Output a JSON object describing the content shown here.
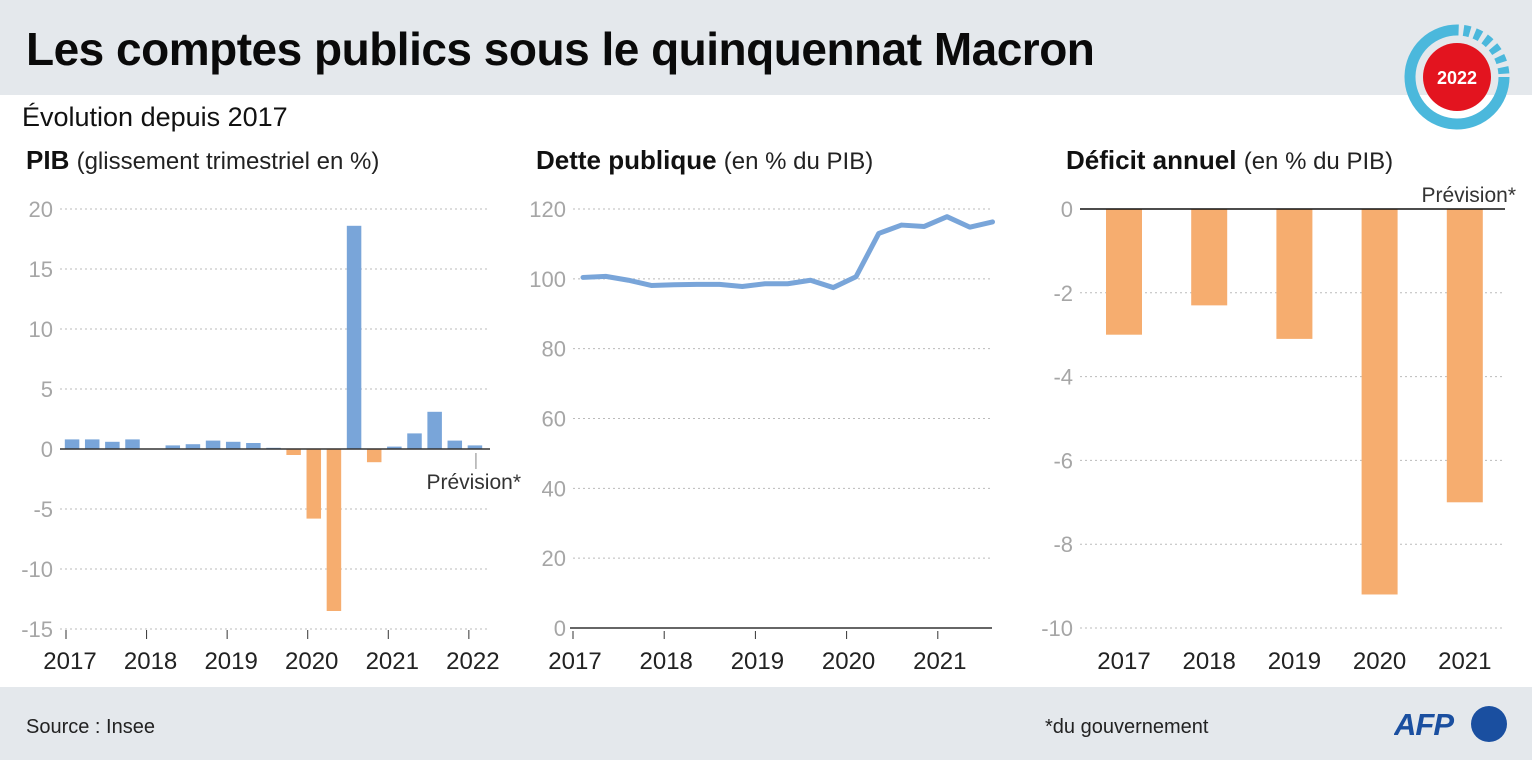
{
  "header": {
    "title": "Les comptes publics sous le quinquennat Macron",
    "badge_label": "2022"
  },
  "subtitle": "Évolution depuis 2017",
  "footer": {
    "source": "Source : Insee",
    "note": "*du gouvernement",
    "logo": "AFP"
  },
  "colors": {
    "positive": "#79a5d9",
    "negative": "#f6ad6f",
    "badge_ring": "#4bb8dc",
    "badge_center": "#e3141f",
    "afp_blue": "#1a4fa0",
    "band": "#e4e8ec"
  },
  "chart_data": [
    {
      "type": "bar",
      "title": "PIB",
      "subtitle": "(glissement trimestriel en %)",
      "xlabel": "",
      "ylabel": "",
      "ylim": [
        -15,
        20
      ],
      "yticks": [
        20,
        15,
        10,
        5,
        0,
        -5,
        -10,
        -15
      ],
      "xtick_labels": [
        "2017",
        "2018",
        "2019",
        "2020",
        "2021",
        "2022"
      ],
      "grid": true,
      "annotation": "Prévision*",
      "categories": [
        "T1 2017",
        "T2 2017",
        "T3 2017",
        "T4 2017",
        "T1 2018",
        "T2 2018",
        "T3 2018",
        "T4 2018",
        "T1 2019",
        "T2 2019",
        "T3 2019",
        "T4 2019",
        "T1 2020",
        "T2 2020",
        "T3 2020",
        "T4 2020",
        "T1 2021",
        "T2 2021",
        "T3 2021",
        "T4 2021",
        "T1 2022"
      ],
      "values": [
        0.8,
        0.8,
        0.6,
        0.8,
        0.0,
        0.3,
        0.4,
        0.7,
        0.6,
        0.5,
        0.1,
        -0.5,
        -5.8,
        -13.5,
        18.6,
        -1.1,
        0.2,
        1.3,
        3.1,
        0.7,
        0.3
      ]
    },
    {
      "type": "line",
      "title": "Dette publique",
      "subtitle": "(en % du PIB)",
      "xlabel": "",
      "ylabel": "",
      "ylim": [
        0,
        120
      ],
      "yticks": [
        120,
        100,
        80,
        60,
        40,
        20,
        0
      ],
      "xtick_labels": [
        "2017",
        "2018",
        "2019",
        "2020",
        "2021"
      ],
      "grid": true,
      "x": [
        "T1 2017",
        "T2 2017",
        "T3 2017",
        "T4 2017",
        "T1 2018",
        "T2 2018",
        "T3 2018",
        "T4 2018",
        "T1 2019",
        "T2 2019",
        "T3 2019",
        "T4 2019",
        "T1 2020",
        "T2 2020",
        "T3 2020",
        "T4 2020",
        "T1 2021",
        "T2 2021",
        "T3 2021"
      ],
      "values": [
        100.4,
        100.7,
        99.6,
        98.1,
        98.3,
        98.4,
        98.4,
        97.8,
        98.6,
        98.6,
        99.6,
        97.5,
        100.6,
        113.0,
        115.4,
        115.0,
        117.8,
        114.8,
        116.3
      ]
    },
    {
      "type": "bar",
      "title": "Déficit annuel",
      "subtitle": "(en % du PIB)",
      "xlabel": "",
      "ylabel": "",
      "ylim": [
        -10,
        0
      ],
      "yticks": [
        0,
        -2,
        -4,
        -6,
        -8,
        -10
      ],
      "grid": true,
      "annotation": "Prévision*",
      "categories": [
        "2017",
        "2018",
        "2019",
        "2020",
        "2021"
      ],
      "values": [
        -3.0,
        -2.3,
        -3.1,
        -9.2,
        -7.0
      ]
    }
  ]
}
